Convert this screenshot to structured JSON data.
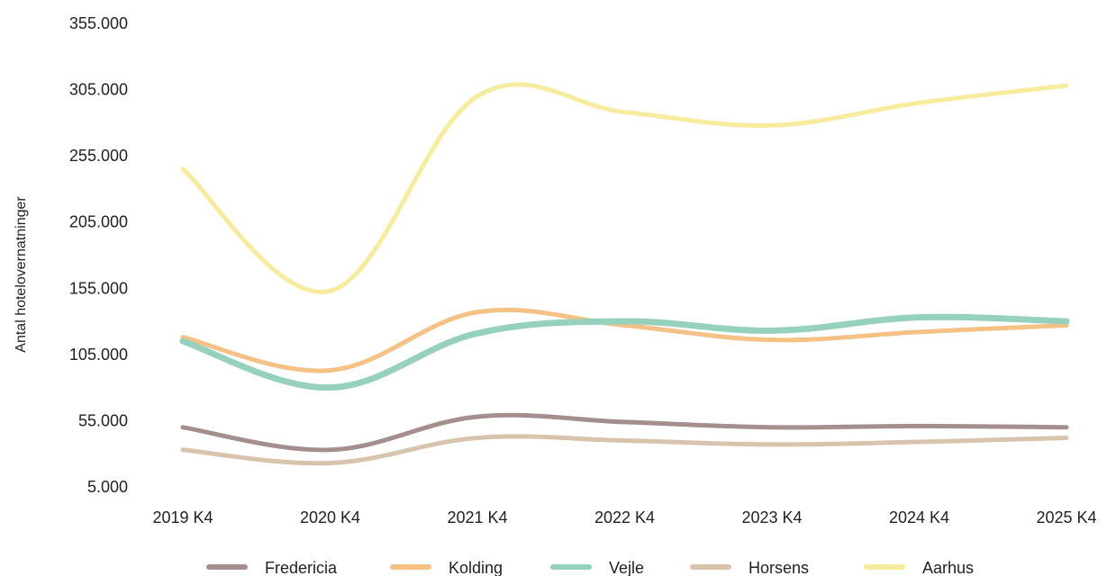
{
  "chart_data": {
    "type": "line",
    "title": "",
    "xlabel": "",
    "ylabel": "Antal hotelovernatninger",
    "categories": [
      "2019 K4",
      "2020 K4",
      "2021 K4",
      "2022 K4",
      "2023 K4",
      "2024 K4",
      "2025 K4"
    ],
    "y_ticks": [
      "5.000",
      "55.000",
      "105.000",
      "155.000",
      "205.000",
      "255.000",
      "305.000",
      "355.000"
    ],
    "ylim": [
      5000,
      355000
    ],
    "grid": false,
    "legend_position": "bottom",
    "series": [
      {
        "name": "Fredericia",
        "color": "#a48e8e",
        "values": [
          50000,
          33000,
          58000,
          54000,
          50000,
          51000,
          50000
        ]
      },
      {
        "name": "Kolding",
        "color": "#f5c185",
        "values": [
          118000,
          93000,
          137000,
          127000,
          116000,
          122000,
          127000
        ]
      },
      {
        "name": "Vejle",
        "color": "#96d1be",
        "values": [
          115000,
          80000,
          121000,
          130000,
          123000,
          133000,
          130000
        ]
      },
      {
        "name": "Horsens",
        "color": "#d8c4ad",
        "values": [
          33000,
          23000,
          42000,
          40000,
          37000,
          39000,
          42000
        ]
      },
      {
        "name": "Aarhus",
        "color": "#f7ec9e",
        "values": [
          245000,
          153000,
          300000,
          288000,
          278000,
          295000,
          308000
        ]
      }
    ]
  }
}
